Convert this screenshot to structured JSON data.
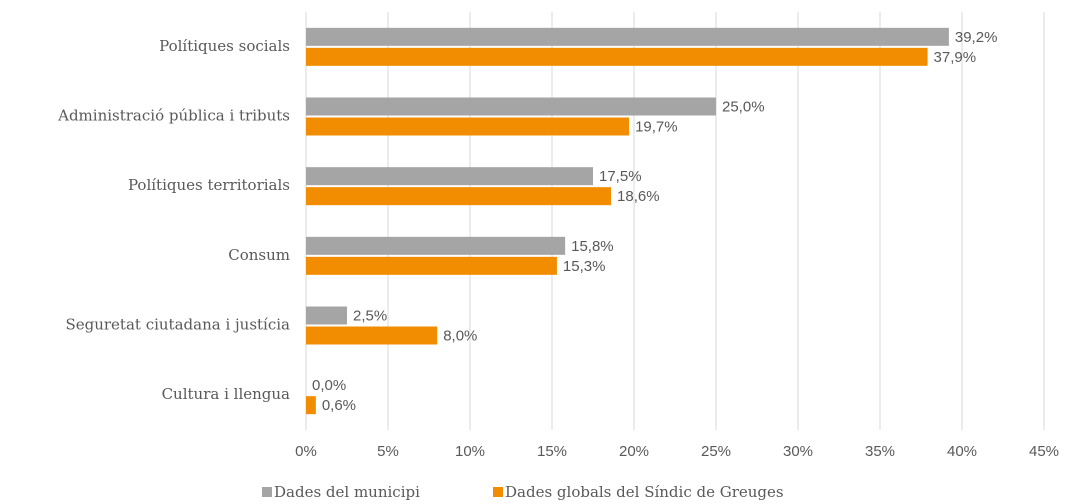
{
  "chart_data": {
    "type": "bar",
    "orientation": "horizontal",
    "categories": [
      "Polítiques socials",
      "Administració pública i tributs",
      "Polítiques territorials",
      "Consum",
      "Seguretat ciutadana i justícia",
      "Cultura i llengua"
    ],
    "series": [
      {
        "name": "Dades del municipi",
        "color": "#a5a5a5",
        "values": [
          39.2,
          25.0,
          17.5,
          15.8,
          2.5,
          0.0
        ],
        "value_labels": [
          "39,2%",
          "25,0%",
          "17,5%",
          "15,8%",
          "2,5%",
          "0,0%"
        ]
      },
      {
        "name": "Dades globals del Síndic de Greuges",
        "color": "#f28c00",
        "values": [
          37.9,
          19.7,
          18.6,
          15.3,
          8.0,
          0.6
        ],
        "value_labels": [
          "37,9%",
          "19,7%",
          "18,6%",
          "15,3%",
          "8,0%",
          "0,6%"
        ]
      }
    ],
    "xlim": [
      0,
      45
    ],
    "xticks": [
      {
        "value": 0,
        "label": "0%"
      },
      {
        "value": 5,
        "label": "5%"
      },
      {
        "value": 10,
        "label": "10%"
      },
      {
        "value": 15,
        "label": "15%"
      },
      {
        "value": 20,
        "label": "20%"
      },
      {
        "value": 25,
        "label": "25%"
      },
      {
        "value": 30,
        "label": "30%"
      },
      {
        "value": 35,
        "label": "35%"
      },
      {
        "value": 40,
        "label": "40%"
      },
      {
        "value": 45,
        "label": "45%"
      }
    ],
    "grid": true,
    "legend": "bottom"
  }
}
